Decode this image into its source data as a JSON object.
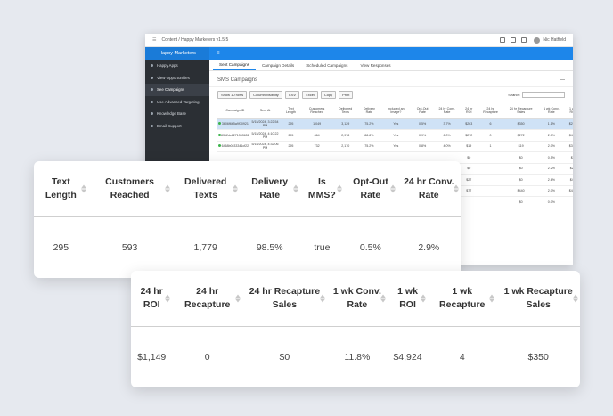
{
  "window": {
    "breadcrumb": "Content  /  Happy Marketers v1.5.5",
    "user": "Nic Hatfield",
    "brand": "Happy Marketers",
    "brand_icon": "menu-icon"
  },
  "sidebar": {
    "items": [
      {
        "label": "Happy Apps",
        "active": false
      },
      {
        "label": "View Opportunities",
        "active": false
      },
      {
        "label": "See Campaigns",
        "active": true
      },
      {
        "label": "Use Advanced Targeting",
        "active": false
      },
      {
        "label": "Knowledge Base",
        "active": false
      },
      {
        "label": "Email Support",
        "active": false
      }
    ]
  },
  "tabs": [
    "Sent Campaigns",
    "Campaign Details",
    "Scheduled Campaigns",
    "View Responses"
  ],
  "section": {
    "title": "SMS Campaigns",
    "collapse": "—"
  },
  "toolbar": {
    "buttons": [
      "Show 10 rows",
      "Column visibility",
      "CSV",
      "Excel",
      "Copy",
      "Print"
    ],
    "search_label": "Search:"
  },
  "mini_table": {
    "headers": [
      "",
      "Campaign ID",
      "Sent At",
      "Text Length",
      "Customers Reached",
      "Delivered Texts",
      "Delivery Rate",
      "Included an Image?",
      "Opt-Out Rate",
      "24 hr Conv. Rate",
      "24 hr ROI",
      "24 hr Recapture",
      "24 hr Recapture Sales",
      "1 wk Conv. Rate",
      "1 wk ROI"
    ],
    "rows": [
      [
        "",
        "3606f6b5a9f70921",
        "5/15/2024, 3:22:54 PM",
        "295",
        "1,049",
        "3,129",
        "75.2%",
        "Yes",
        "0.5%",
        "3.7%",
        "$263",
        "6",
        "$350",
        "1.1%",
        "$267"
      ],
      [
        "",
        "8312dc8271363651",
        "5/15/2024, 4:10:22 PM",
        "295",
        "864",
        "2,978",
        "88.8%",
        "Yes",
        "0.9%",
        "6.0%",
        "$272",
        "0",
        "$272",
        "2.0%",
        "$492"
      ],
      [
        "",
        "6468b0c33341cf22",
        "5/15/2024, 4:32:06 PM",
        "295",
        "732",
        "2,170",
        "75.2%",
        "Yes",
        "0.8%",
        "4.0%",
        "$19",
        "1",
        "$19",
        "2.0%",
        "$396"
      ],
      [
        "",
        "",
        "",
        "",
        "",
        "",
        "",
        "",
        "",
        "",
        "$0",
        "",
        "$0",
        "0.5%",
        "$5"
      ],
      [
        "",
        "",
        "",
        "",
        "",
        "",
        "",
        "",
        "",
        "",
        "$0",
        "",
        "$0",
        "2.2%",
        "$20"
      ],
      [
        "",
        "",
        "",
        "",
        "",
        "",
        "",
        "",
        "",
        "",
        "$27",
        "",
        "$0",
        "2.6%",
        "$40"
      ],
      [
        "",
        "",
        "",
        "",
        "",
        "",
        "",
        "",
        "",
        "",
        "$77",
        "",
        "$440",
        "2.0%",
        "$430"
      ],
      [
        "",
        "",
        "",
        "",
        "",
        "",
        "",
        "",
        "",
        "",
        "",
        "",
        "$0",
        "0.0%",
        ""
      ]
    ]
  },
  "card1": {
    "headers": [
      "Text Length",
      "Customers Reached",
      "Delivered Texts",
      "Delivery Rate",
      "Is MMS?",
      "Opt-Out Rate",
      "24 hr Conv. Rate"
    ],
    "values": [
      "295",
      "593",
      "1,779",
      "98.5%",
      "true",
      "0.5%",
      "2.9%"
    ]
  },
  "card2": {
    "headers": [
      "24 hr ROI",
      "24 hr Recapture",
      "24 hr Recapture Sales",
      "1 wk Conv. Rate",
      "1 wk ROI",
      "1 wk Recapture",
      "1 wk Recapture Sales"
    ],
    "values": [
      "$1,149",
      "0",
      "$0",
      "11.8%",
      "$4,924",
      "4",
      "$350"
    ]
  }
}
